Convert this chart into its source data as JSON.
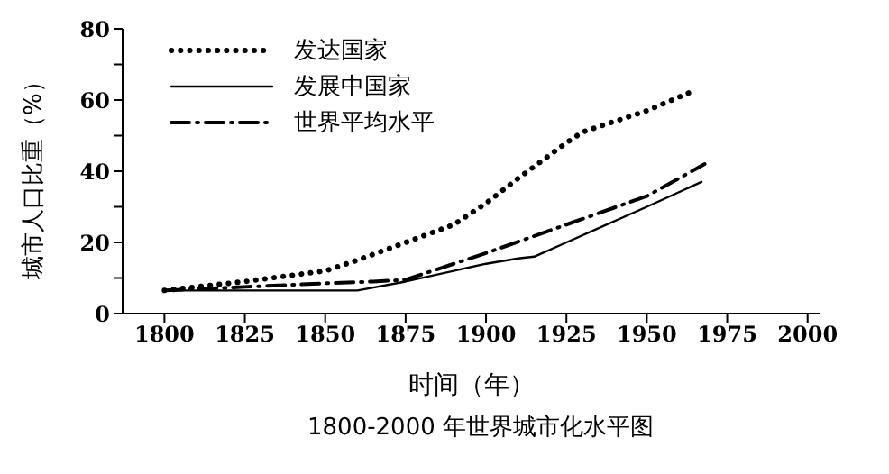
{
  "chart_data": {
    "type": "line",
    "title": "1800-2000 年世界城市化水平图",
    "xlabel": "时间（年）",
    "ylabel": "城市人口比重（%）",
    "xlim": [
      1787,
      2004
    ],
    "xticks": [
      1800,
      1825,
      1850,
      1875,
      1900,
      1925,
      1950,
      1975,
      2000
    ],
    "ylim": [
      0,
      80
    ],
    "yticks": [
      0,
      {
        "value": 10,
        "label": null
      },
      20,
      {
        "value": 30,
        "label": null
      },
      40,
      {
        "value": 50,
        "label": null
      },
      60,
      {
        "value": 70,
        "label": null
      },
      80
    ],
    "grid": false,
    "legend": "top left",
    "marker": "none",
    "series": [
      {
        "name": "发达国家",
        "color": "#000000",
        "line_style": "dotted",
        "x": [
          1800,
          1825,
          1850,
          1860,
          1875,
          1890,
          1900,
          1910,
          1925,
          1930,
          1950,
          1963
        ],
        "values": [
          6.5,
          9,
          12,
          15,
          20,
          25,
          31,
          38,
          48,
          51,
          57,
          62
        ]
      },
      {
        "name": "发展中国家",
        "color": "#000000",
        "line_style": "solid",
        "x": [
          1800,
          1850,
          1860,
          1875,
          1900,
          1910,
          1915,
          1925,
          1950,
          1967
        ],
        "values": [
          6.5,
          6.5,
          6.5,
          9,
          14,
          15.5,
          16,
          20,
          30,
          37
        ]
      },
      {
        "name": "世界平均水平",
        "color": "#000000",
        "line_style": "dashdot",
        "x": [
          1800,
          1825,
          1850,
          1865,
          1875,
          1900,
          1925,
          1950,
          1968
        ],
        "values": [
          6.5,
          7.5,
          8.5,
          9,
          9.5,
          17,
          25,
          33,
          42
        ]
      }
    ]
  }
}
